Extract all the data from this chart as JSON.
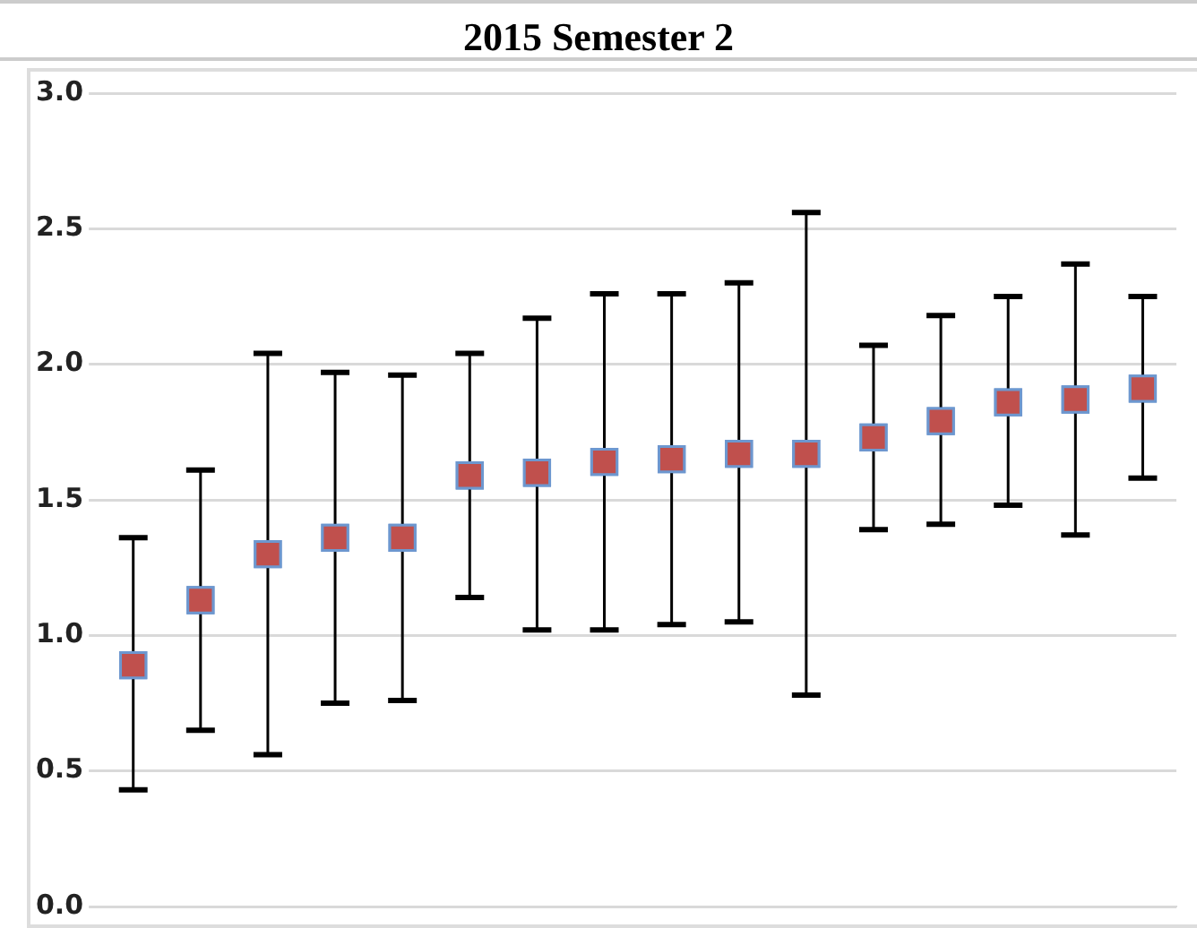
{
  "chart_data": {
    "type": "scatter",
    "title": "2015 Semester 2",
    "categories": [
      null,
      null,
      null,
      null,
      null,
      null,
      null,
      null,
      null,
      null,
      null,
      null,
      null,
      null,
      null,
      null
    ],
    "values": [
      0.89,
      1.13,
      1.3,
      1.36,
      1.36,
      1.59,
      1.6,
      1.64,
      1.65,
      1.67,
      1.67,
      1.73,
      1.79,
      1.86,
      1.87,
      1.91
    ],
    "errors": [
      [
        0.43,
        1.36
      ],
      [
        0.65,
        1.61
      ],
      [
        0.56,
        2.04
      ],
      [
        0.75,
        1.97
      ],
      [
        0.76,
        1.96
      ],
      [
        1.14,
        2.04
      ],
      [
        1.02,
        2.17
      ],
      [
        1.02,
        2.26
      ],
      [
        1.04,
        2.26
      ],
      [
        1.05,
        2.3
      ],
      [
        0.78,
        2.56
      ],
      [
        1.39,
        2.07
      ],
      [
        1.41,
        2.18
      ],
      [
        1.48,
        2.25
      ],
      [
        1.37,
        2.37
      ],
      [
        1.58,
        2.25
      ]
    ],
    "color": "#c0504d",
    "marker": "square",
    "ylim": [
      0,
      3
    ],
    "yticks": [
      {
        "value": 0,
        "label": "0.0"
      },
      {
        "value": 0.5,
        "label": "0.5"
      },
      {
        "value": 1,
        "label": "1.0"
      },
      {
        "value": 1.5,
        "label": "1.5"
      },
      {
        "value": 2,
        "label": "2.0"
      },
      {
        "value": 2.5,
        "label": "2.5"
      },
      {
        "value": 3,
        "label": "3.0"
      }
    ],
    "grid": "y",
    "tick_labels": "y"
  }
}
